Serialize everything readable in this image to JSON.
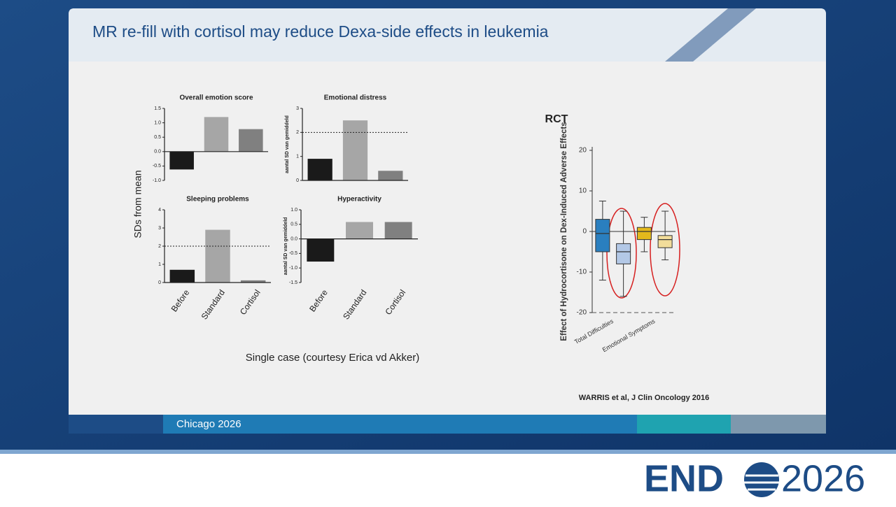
{
  "slide": {
    "title": "MR re-fill with cortisol may reduce Dexa-side effects in leukemia",
    "footer": "Chicago 2026",
    "logo": {
      "left": "END",
      "right": "2026"
    }
  },
  "panel": {
    "ylabel": "SDs from mean",
    "caption": "Single case (courtesy Erica vd Akker)"
  },
  "source": "WARRIS et al, J Clin Oncology 2016",
  "chart_data": [
    {
      "type": "bar",
      "title": "Overall emotion score",
      "categories": [
        null,
        null,
        null
      ],
      "values": [
        -0.62,
        1.2,
        0.78
      ],
      "colors": [
        "#1a1a1a",
        "#a6a6a6",
        "#808080"
      ],
      "ylim": [
        -1,
        1.5
      ],
      "yticks": [
        {
          "value": -1,
          "label": "-1.0"
        },
        -0.5,
        {
          "value": 0,
          "label": "0.0"
        },
        0.5,
        {
          "value": 1,
          "label": "1.0"
        },
        1.5
      ]
    },
    {
      "type": "bar",
      "title": "Emotional distress",
      "ylabel": "aantal SD van gemiddeld",
      "categories": [
        null,
        null,
        null
      ],
      "values": [
        0.9,
        2.5,
        0.4
      ],
      "colors": [
        "#1a1a1a",
        "#a6a6a6",
        "#808080"
      ],
      "ylim": [
        0,
        3
      ],
      "yticks": [
        0,
        1,
        2,
        3
      ],
      "ref_line": 2
    },
    {
      "type": "bar",
      "title": "Sleeping problems",
      "categories": [
        "Before",
        "Standard",
        "Cortisol"
      ],
      "values": [
        0.7,
        2.9,
        0.12
      ],
      "colors": [
        "#1a1a1a",
        "#a6a6a6",
        "#808080"
      ],
      "ylim": [
        0,
        4
      ],
      "yticks": [
        0,
        1,
        2,
        3,
        4
      ],
      "ref_line": 2
    },
    {
      "type": "bar",
      "title": "Hyperactivity",
      "ylabel": "aantal SD van gemiddeld",
      "categories": [
        "Before",
        "Standard",
        "Cortisol"
      ],
      "values": [
        -0.78,
        0.58,
        0.58
      ],
      "colors": [
        "#1a1a1a",
        "#a6a6a6",
        "#808080"
      ],
      "ylim": [
        -1.5,
        1
      ],
      "yticks": [
        -1.5,
        {
          "value": -1,
          "label": "-1.0"
        },
        -0.5,
        {
          "value": 0,
          "label": "0.0"
        },
        0.5,
        {
          "value": 1,
          "label": "1.0"
        }
      ]
    },
    {
      "type": "box",
      "title": "RCT",
      "ylabel": "Effect of Hydrocortisone on Dex-Induced Adverse Effects",
      "categories": [
        "Total Difficulties",
        "Emotional Symptoms"
      ],
      "boxes": [
        [
          {
            "color": "#2a7fbf",
            "min": -12,
            "q1": -5,
            "median": -0.5,
            "q3": 3,
            "max": 7.5
          },
          {
            "color": "#b3c8e6",
            "min": -16,
            "q1": -8,
            "median": -5,
            "q3": -3,
            "max": 5
          }
        ],
        [
          {
            "color": "#e3b91c",
            "min": -5,
            "q1": -2,
            "median": 0,
            "q3": 1,
            "max": 3.5
          },
          {
            "color": "#f2dd9a",
            "min": -7,
            "q1": -4,
            "median": -2,
            "q3": -1,
            "max": 5
          }
        ]
      ],
      "ylim": [
        -20,
        20
      ],
      "yticks": [
        -20,
        -10,
        0,
        10,
        20
      ]
    }
  ]
}
